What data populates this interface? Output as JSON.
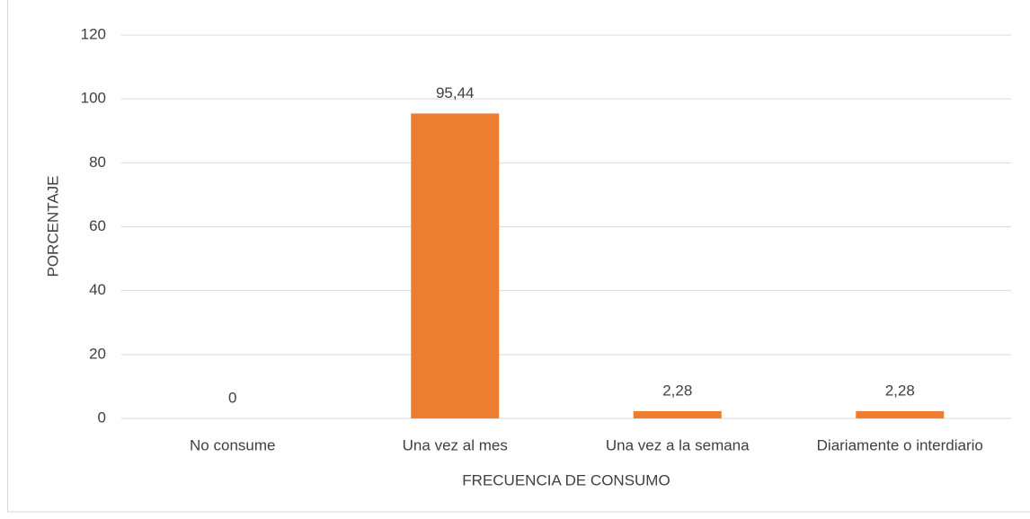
{
  "chart_data": {
    "type": "bar",
    "categories": [
      "No consume",
      "Una vez al mes",
      "Una vez a la semana",
      "Diariamente o interdiario"
    ],
    "values": [
      0,
      95.44,
      2.28,
      2.28
    ],
    "value_labels": [
      "0",
      "95,44",
      "2,28",
      "2,28"
    ],
    "color": "#ed7d31",
    "xlabel": "FRECUENCIA DE CONSUMO",
    "ylabel": "PORCENTAJE",
    "ylim": [
      0,
      120
    ],
    "yticks": [
      0,
      20,
      40,
      60,
      80,
      100,
      120
    ],
    "grid": true
  }
}
